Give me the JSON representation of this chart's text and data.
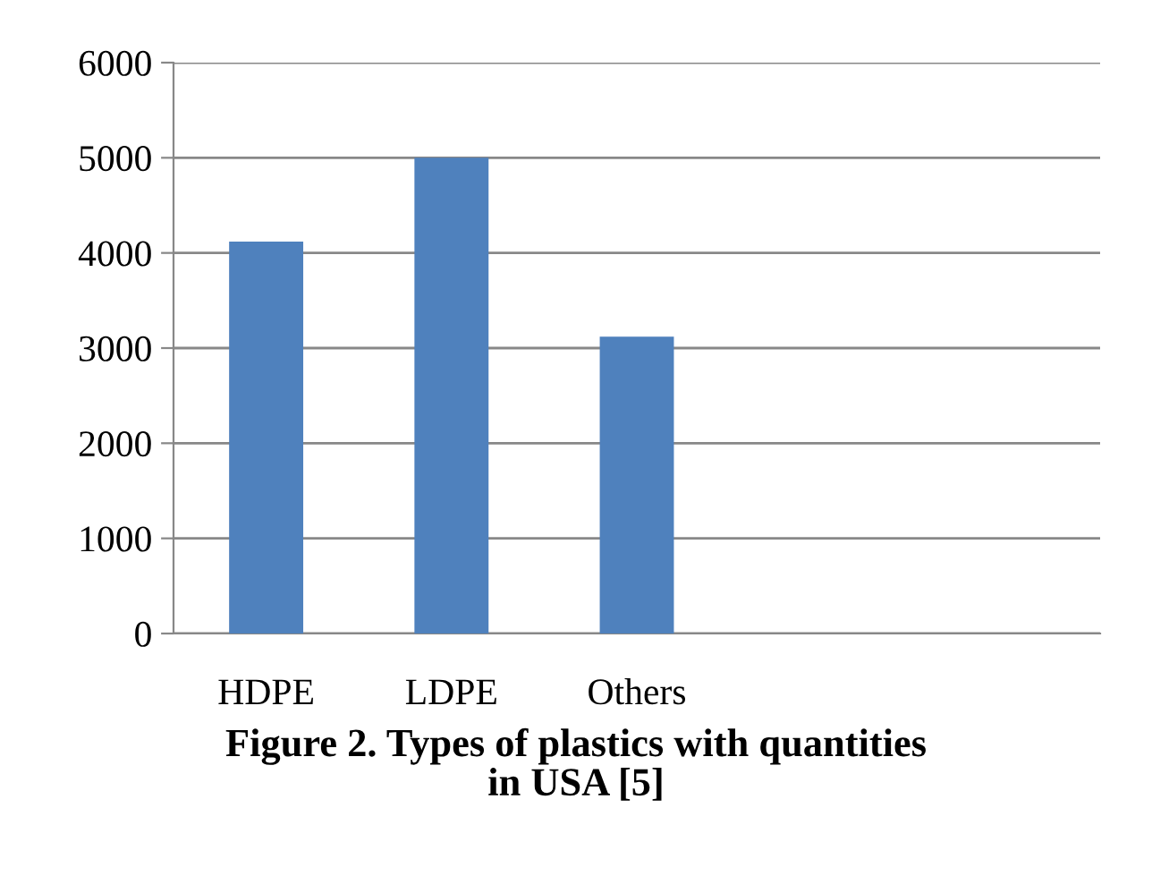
{
  "chart_data": {
    "type": "bar",
    "categories": [
      "HDPE",
      "LDPE",
      "Others",
      null,
      null
    ],
    "values": [
      4120,
      5000,
      3120,
      null,
      null
    ],
    "color": "#4f81bd",
    "ylim": [
      0,
      6000
    ],
    "yticks": [
      0,
      1000,
      2000,
      3000,
      4000,
      5000,
      6000
    ],
    "grid": "y",
    "legend": false,
    "annotations": [
      "Figure 2. Types of plastics with quantities\nin USA [5]"
    ]
  }
}
